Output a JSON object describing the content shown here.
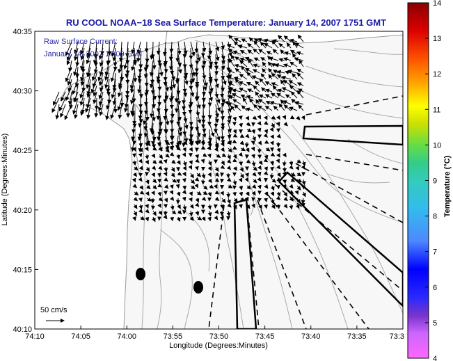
{
  "title": "RU COOL  NOAA−18  Sea Surface Temperature:  January 14, 2007 1751 GMT",
  "legend": {
    "line1": "Raw Surface Current:",
    "line2": "January 14, 2007 17:00 GMT"
  },
  "axes": {
    "xlabel": "Longitude (Degrees:Minutes)",
    "ylabel": "Latitude (Degrees:Minutes)",
    "xticks": [
      "74:10",
      "74:05",
      "74:00",
      "73:55",
      "73:50",
      "73:45",
      "73:40",
      "73:35",
      "73:3"
    ],
    "yticks": [
      "40:35",
      "40:30",
      "40:25",
      "40:20",
      "40:15",
      "40:10"
    ]
  },
  "scale_arrow": {
    "label": "50 cm/s"
  },
  "colorbar": {
    "label": "Temperature (°C)",
    "ticks": [
      "14",
      "13",
      "12",
      "11",
      "10",
      "9",
      "8",
      "7",
      "6",
      "5",
      "4"
    ],
    "min": 4,
    "max": 14
  },
  "colors": {
    "title": "#1a1aa8",
    "land": "#ffffff",
    "ocean": "#f7f7f7",
    "contour": "#a0a0a0",
    "arrows": "#000000"
  }
}
